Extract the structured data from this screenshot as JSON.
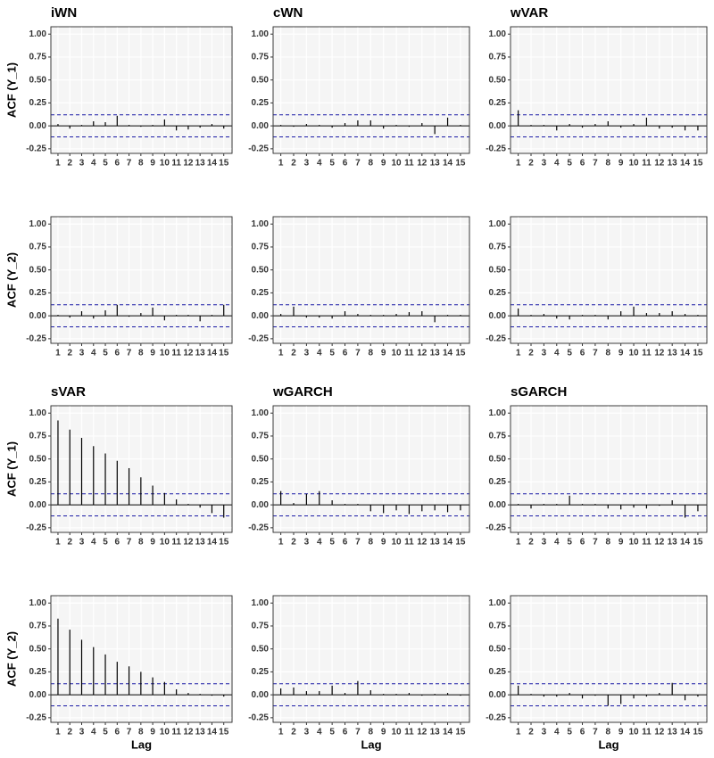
{
  "chart_data": [
    {
      "type": "bar",
      "title": "iWN",
      "ylabel": "ACF (Y_1)",
      "x": [
        1,
        2,
        3,
        4,
        5,
        6,
        7,
        8,
        9,
        10,
        11,
        12,
        13,
        14,
        15
      ],
      "values": [
        0.02,
        -0.03,
        0.01,
        0.05,
        0.04,
        0.11,
        0.01,
        -0.01,
        0.01,
        0.07,
        -0.05,
        -0.04,
        -0.02,
        0.02,
        -0.03
      ],
      "color": "#000000",
      "ci": 0.12,
      "ci_color": "#1a1aa6",
      "xlim": [
        0.4,
        15.7
      ],
      "ylim": [
        -0.3,
        1.08
      ],
      "xticks": [
        1,
        2,
        3,
        4,
        5,
        6,
        7,
        8,
        9,
        10,
        11,
        12,
        13,
        14,
        15
      ],
      "yticks": [
        -0.25,
        {
          "value": 0,
          "label": "0.00"
        },
        0.25,
        {
          "value": 0.5,
          "label": "0.50"
        },
        0.75,
        {
          "value": 1,
          "label": "1.00"
        }
      ],
      "grid": true
    },
    {
      "type": "bar",
      "title": "cWN",
      "x": [
        1,
        2,
        3,
        4,
        5,
        6,
        7,
        8,
        9,
        10,
        11,
        12,
        13,
        14,
        15
      ],
      "values": [
        0.01,
        -0.01,
        0.02,
        0.01,
        -0.02,
        0.03,
        0.06,
        0.06,
        -0.03,
        0.01,
        -0.01,
        0.03,
        -0.09,
        0.09,
        0.01
      ],
      "color": "#000000",
      "ci": 0.12,
      "ci_color": "#1a1aa6",
      "xlim": [
        0.4,
        15.7
      ],
      "ylim": [
        -0.3,
        1.08
      ],
      "xticks": [
        1,
        2,
        3,
        4,
        5,
        6,
        7,
        8,
        9,
        10,
        11,
        12,
        13,
        14,
        15
      ],
      "yticks": [
        -0.25,
        {
          "value": 0,
          "label": "0.00"
        },
        0.25,
        {
          "value": 0.5,
          "label": "0.50"
        },
        0.75,
        {
          "value": 1,
          "label": "1.00"
        }
      ],
      "grid": true
    },
    {
      "type": "bar",
      "title": "wVAR",
      "x": [
        1,
        2,
        3,
        4,
        5,
        6,
        7,
        8,
        9,
        10,
        11,
        12,
        13,
        14,
        15
      ],
      "values": [
        0.17,
        0.01,
        0.01,
        -0.05,
        0.02,
        -0.02,
        0.02,
        0.05,
        -0.02,
        0.02,
        0.09,
        -0.03,
        -0.02,
        -0.05,
        -0.05
      ],
      "color": "#000000",
      "ci": 0.12,
      "ci_color": "#1a1aa6",
      "xlim": [
        0.4,
        15.7
      ],
      "ylim": [
        -0.3,
        1.08
      ],
      "xticks": [
        1,
        2,
        3,
        4,
        5,
        6,
        7,
        8,
        9,
        10,
        11,
        12,
        13,
        14,
        15
      ],
      "yticks": [
        -0.25,
        {
          "value": 0,
          "label": "0.00"
        },
        0.25,
        {
          "value": 0.5,
          "label": "0.50"
        },
        0.75,
        {
          "value": 1,
          "label": "1.00"
        }
      ],
      "grid": true
    },
    {
      "type": "bar",
      "ylabel": "ACF (Y_2)",
      "x": [
        1,
        2,
        3,
        4,
        5,
        6,
        7,
        8,
        9,
        10,
        11,
        12,
        13,
        14,
        15
      ],
      "values": [
        0.01,
        -0.02,
        0.05,
        -0.03,
        0.06,
        0.12,
        -0.01,
        0.03,
        0.09,
        -0.05,
        0.01,
        0.01,
        -0.06,
        0.01,
        0.12
      ],
      "color": "#000000",
      "ci": 0.12,
      "ci_color": "#1a1aa6",
      "xlim": [
        0.4,
        15.7
      ],
      "ylim": [
        -0.3,
        1.08
      ],
      "xticks": [
        1,
        2,
        3,
        4,
        5,
        6,
        7,
        8,
        9,
        10,
        11,
        12,
        13,
        14,
        15
      ],
      "yticks": [
        -0.25,
        {
          "value": 0,
          "label": "0.00"
        },
        0.25,
        {
          "value": 0.5,
          "label": "0.50"
        },
        0.75,
        {
          "value": 1,
          "label": "1.00"
        }
      ],
      "grid": true
    },
    {
      "type": "bar",
      "x": [
        1,
        2,
        3,
        4,
        5,
        6,
        7,
        8,
        9,
        10,
        11,
        12,
        13,
        14,
        15
      ],
      "values": [
        0.02,
        0.1,
        -0.02,
        -0.02,
        -0.03,
        0.05,
        0.02,
        0.01,
        0.01,
        0.02,
        0.04,
        0.05,
        -0.07,
        0.01,
        0.01
      ],
      "color": "#000000",
      "ci": 0.12,
      "ci_color": "#1a1aa6",
      "xlim": [
        0.4,
        15.7
      ],
      "ylim": [
        -0.3,
        1.08
      ],
      "xticks": [
        1,
        2,
        3,
        4,
        5,
        6,
        7,
        8,
        9,
        10,
        11,
        12,
        13,
        14,
        15
      ],
      "yticks": [
        -0.25,
        {
          "value": 0,
          "label": "0.00"
        },
        0.25,
        {
          "value": 0.5,
          "label": "0.50"
        },
        0.75,
        {
          "value": 1,
          "label": "1.00"
        }
      ],
      "grid": true
    },
    {
      "type": "bar",
      "x": [
        1,
        2,
        3,
        4,
        5,
        6,
        7,
        8,
        9,
        10,
        11,
        12,
        13,
        14,
        15
      ],
      "values": [
        0.08,
        0.01,
        0.02,
        -0.03,
        -0.04,
        0.01,
        0.01,
        -0.04,
        0.05,
        0.1,
        0.03,
        0.03,
        0.05,
        0.02,
        0.01
      ],
      "color": "#000000",
      "ci": 0.12,
      "ci_color": "#1a1aa6",
      "xlim": [
        0.4,
        15.7
      ],
      "ylim": [
        -0.3,
        1.08
      ],
      "xticks": [
        1,
        2,
        3,
        4,
        5,
        6,
        7,
        8,
        9,
        10,
        11,
        12,
        13,
        14,
        15
      ],
      "yticks": [
        -0.25,
        {
          "value": 0,
          "label": "0.00"
        },
        0.25,
        {
          "value": 0.5,
          "label": "0.50"
        },
        0.75,
        {
          "value": 1,
          "label": "1.00"
        }
      ],
      "grid": true
    },
    {
      "type": "bar",
      "title": "sVAR",
      "ylabel": "ACF (Y_1)",
      "x": [
        1,
        2,
        3,
        4,
        5,
        6,
        7,
        8,
        9,
        10,
        11,
        12,
        13,
        14,
        15
      ],
      "values": [
        0.92,
        0.82,
        0.73,
        0.64,
        0.56,
        0.48,
        0.4,
        0.3,
        0.21,
        0.13,
        0.06,
        0.01,
        -0.03,
        -0.09,
        -0.14
      ],
      "color": "#000000",
      "ci": 0.12,
      "ci_color": "#1a1aa6",
      "xlim": [
        0.4,
        15.7
      ],
      "ylim": [
        -0.3,
        1.08
      ],
      "xticks": [
        1,
        2,
        3,
        4,
        5,
        6,
        7,
        8,
        9,
        10,
        11,
        12,
        13,
        14,
        15
      ],
      "yticks": [
        -0.25,
        {
          "value": 0,
          "label": "0.00"
        },
        0.25,
        {
          "value": 0.5,
          "label": "0.50"
        },
        0.75,
        {
          "value": 1,
          "label": "1.00"
        }
      ],
      "grid": true
    },
    {
      "type": "bar",
      "title": "wGARCH",
      "x": [
        1,
        2,
        3,
        4,
        5,
        6,
        7,
        8,
        9,
        10,
        11,
        12,
        13,
        14,
        15
      ],
      "values": [
        0.15,
        0.02,
        0.12,
        0.15,
        0.05,
        0.01,
        0.01,
        -0.07,
        -0.09,
        -0.06,
        -0.1,
        -0.07,
        -0.06,
        -0.08,
        -0.06
      ],
      "color": "#000000",
      "ci": 0.12,
      "ci_color": "#1a1aa6",
      "xlim": [
        0.4,
        15.7
      ],
      "ylim": [
        -0.3,
        1.08
      ],
      "xticks": [
        1,
        2,
        3,
        4,
        5,
        6,
        7,
        8,
        9,
        10,
        11,
        12,
        13,
        14,
        15
      ],
      "yticks": [
        -0.25,
        {
          "value": 0,
          "label": "0.00"
        },
        0.25,
        {
          "value": 0.5,
          "label": "0.50"
        },
        0.75,
        {
          "value": 1,
          "label": "1.00"
        }
      ],
      "grid": true
    },
    {
      "type": "bar",
      "title": "sGARCH",
      "x": [
        1,
        2,
        3,
        4,
        5,
        6,
        7,
        8,
        9,
        10,
        11,
        12,
        13,
        14,
        15
      ],
      "values": [
        0.01,
        -0.04,
        0.01,
        0.01,
        0.1,
        0.01,
        0.01,
        -0.04,
        -0.05,
        -0.03,
        -0.04,
        -0.01,
        0.05,
        -0.14,
        -0.07
      ],
      "color": "#000000",
      "ci": 0.12,
      "ci_color": "#1a1aa6",
      "xlim": [
        0.4,
        15.7
      ],
      "ylim": [
        -0.3,
        1.08
      ],
      "xticks": [
        1,
        2,
        3,
        4,
        5,
        6,
        7,
        8,
        9,
        10,
        11,
        12,
        13,
        14,
        15
      ],
      "yticks": [
        -0.25,
        {
          "value": 0,
          "label": "0.00"
        },
        0.25,
        {
          "value": 0.5,
          "label": "0.50"
        },
        0.75,
        {
          "value": 1,
          "label": "1.00"
        }
      ],
      "grid": true
    },
    {
      "type": "bar",
      "ylabel": "ACF (Y_2)",
      "xlabel": "Lag",
      "x": [
        1,
        2,
        3,
        4,
        5,
        6,
        7,
        8,
        9,
        10,
        11,
        12,
        13,
        14,
        15
      ],
      "values": [
        0.83,
        0.71,
        0.6,
        0.52,
        0.44,
        0.36,
        0.31,
        0.25,
        0.19,
        0.14,
        0.06,
        0.02,
        0.01,
        -0.01,
        -0.02
      ],
      "color": "#000000",
      "ci": 0.12,
      "ci_color": "#1a1aa6",
      "xlim": [
        0.4,
        15.7
      ],
      "ylim": [
        -0.3,
        1.08
      ],
      "xticks": [
        1,
        2,
        3,
        4,
        5,
        6,
        7,
        8,
        9,
        10,
        11,
        12,
        13,
        14,
        15
      ],
      "yticks": [
        -0.25,
        {
          "value": 0,
          "label": "0.00"
        },
        0.25,
        {
          "value": 0.5,
          "label": "0.50"
        },
        0.75,
        {
          "value": 1,
          "label": "1.00"
        }
      ],
      "grid": true
    },
    {
      "type": "bar",
      "xlabel": "Lag",
      "x": [
        1,
        2,
        3,
        4,
        5,
        6,
        7,
        8,
        9,
        10,
        11,
        12,
        13,
        14,
        15
      ],
      "values": [
        0.07,
        0.08,
        0.04,
        0.04,
        0.1,
        0.02,
        0.15,
        0.05,
        0.01,
        0.01,
        0.02,
        -0.01,
        0.01,
        0.02,
        -0.01
      ],
      "color": "#000000",
      "ci": 0.12,
      "ci_color": "#1a1aa6",
      "xlim": [
        0.4,
        15.7
      ],
      "ylim": [
        -0.3,
        1.08
      ],
      "xticks": [
        1,
        2,
        3,
        4,
        5,
        6,
        7,
        8,
        9,
        10,
        11,
        12,
        13,
        14,
        15
      ],
      "yticks": [
        -0.25,
        {
          "value": 0,
          "label": "0.00"
        },
        0.25,
        {
          "value": 0.5,
          "label": "0.50"
        },
        0.75,
        {
          "value": 1,
          "label": "1.00"
        }
      ],
      "grid": true
    },
    {
      "type": "bar",
      "xlabel": "Lag",
      "x": [
        1,
        2,
        3,
        4,
        5,
        6,
        7,
        8,
        9,
        10,
        11,
        12,
        13,
        14,
        15
      ],
      "values": [
        0.1,
        0.01,
        -0.02,
        -0.02,
        0.02,
        -0.04,
        -0.01,
        -0.12,
        -0.1,
        -0.04,
        -0.02,
        0.02,
        0.13,
        -0.06,
        -0.02
      ],
      "color": "#000000",
      "ci": 0.12,
      "ci_color": "#1a1aa6",
      "xlim": [
        0.4,
        15.7
      ],
      "ylim": [
        -0.3,
        1.08
      ],
      "xticks": [
        1,
        2,
        3,
        4,
        5,
        6,
        7,
        8,
        9,
        10,
        11,
        12,
        13,
        14,
        15
      ],
      "yticks": [
        -0.25,
        {
          "value": 0,
          "label": "0.00"
        },
        0.25,
        {
          "value": 0.5,
          "label": "0.50"
        },
        0.75,
        {
          "value": 1,
          "label": "1.00"
        }
      ],
      "grid": true
    }
  ]
}
